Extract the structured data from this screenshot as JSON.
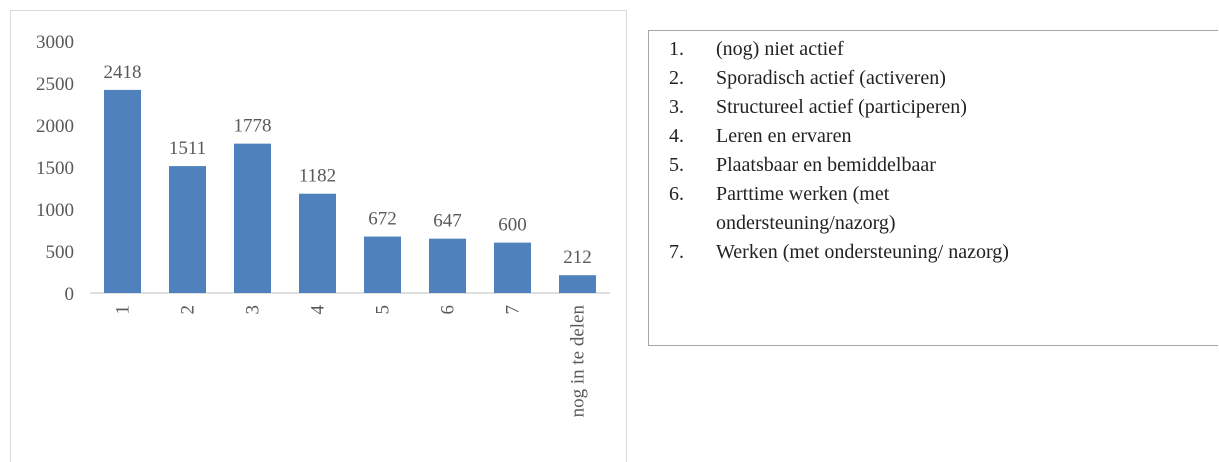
{
  "chart_data": {
    "type": "bar",
    "categories": [
      "1",
      "2",
      "3",
      "4",
      "5",
      "6",
      "7",
      "nog in te delen"
    ],
    "values": [
      2418,
      1511,
      1778,
      1182,
      672,
      647,
      600,
      212
    ],
    "color": "#4f81bd",
    "ylim": [
      0,
      3000
    ],
    "yticks": [
      0,
      500,
      1000,
      1500,
      2000,
      2500,
      3000
    ],
    "grid": false
  },
  "list": {
    "items": [
      {
        "marker": "1.",
        "lines": [
          "(nog) niet actief"
        ]
      },
      {
        "marker": "2.",
        "lines": [
          "Sporadisch actief (activeren)"
        ]
      },
      {
        "marker": "3.",
        "lines": [
          "Structureel actief (participeren)"
        ]
      },
      {
        "marker": "4.",
        "lines": [
          "Leren en ervaren"
        ]
      },
      {
        "marker": "5.",
        "lines": [
          "Plaatsbaar en bemiddelbaar"
        ]
      },
      {
        "marker": "6.",
        "lines": [
          "Parttime werken (met",
          "ondersteuning/nazorg)"
        ]
      },
      {
        "marker": "7.",
        "lines": [
          "Werken (met ondersteuning/ nazorg)"
        ]
      }
    ]
  }
}
